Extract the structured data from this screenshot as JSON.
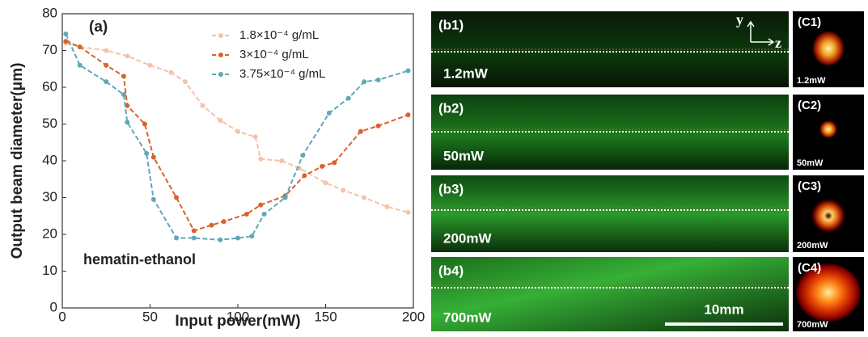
{
  "chart_data": {
    "type": "line",
    "panel_label": "(a)",
    "annotation": "hematin-ethanol",
    "x_label": "Input power(mW)",
    "y_label": "Output beam diameter(μm)",
    "xlim": [
      0,
      200
    ],
    "ylim": [
      0,
      80
    ],
    "xticks": [
      0,
      50,
      100,
      150,
      200
    ],
    "yticks": [
      0,
      10,
      20,
      30,
      40,
      50,
      60,
      70,
      80
    ],
    "legend": "upper right",
    "series": [
      {
        "name": "1.8×10⁻⁴ g/mL",
        "color": "#f4c3a9",
        "x": [
          2,
          10,
          25,
          37,
          50,
          62,
          70,
          80,
          90,
          100,
          110,
          113,
          125,
          135,
          150,
          160,
          172,
          185,
          197
        ],
        "values": [
          72,
          71,
          70,
          68.5,
          66,
          64,
          61.5,
          55,
          51,
          48,
          46.5,
          40.5,
          40,
          38,
          34,
          32,
          30,
          27.5,
          26
        ]
      },
      {
        "name": "3×10⁻⁴ g/mL",
        "color": "#d9622b",
        "x": [
          2,
          10,
          25,
          35,
          37,
          47,
          52,
          65,
          75,
          85,
          92,
          105,
          113,
          127,
          138,
          148,
          155,
          170,
          180,
          197
        ],
        "values": [
          72.5,
          71,
          66,
          63,
          55,
          50,
          41,
          30,
          21,
          22.5,
          23.5,
          25.5,
          28,
          30.5,
          36,
          38.5,
          39.5,
          48,
          49.5,
          52.5
        ]
      },
      {
        "name": "3.75×10⁻⁴ g/mL",
        "color": "#5fa8b8",
        "x": [
          2,
          10,
          25,
          35,
          37,
          48,
          52,
          65,
          75,
          90,
          100,
          108,
          115,
          127,
          137,
          152,
          163,
          172,
          180,
          197
        ],
        "values": [
          74.5,
          66,
          61.5,
          58,
          50.5,
          42,
          29.5,
          19,
          19,
          18.5,
          19,
          19.5,
          25.5,
          30,
          41.5,
          53,
          57,
          61.5,
          62,
          64.5
        ]
      }
    ]
  },
  "image_panels": [
    {
      "label": "(b1)",
      "power": "1.2mW"
    },
    {
      "label": "(b2)",
      "power": "50mW"
    },
    {
      "label": "(b3)",
      "power": "200mW"
    },
    {
      "label": "(b4)",
      "power": "700mW"
    }
  ],
  "axis_symbols": {
    "y": "y",
    "z": "z"
  },
  "scale_bar": "10mm",
  "spot_panels": [
    {
      "label": "(C1)",
      "power": "1.2mW"
    },
    {
      "label": "(C2)",
      "power": "50mW"
    },
    {
      "label": "(C3)",
      "power": "200mW"
    },
    {
      "label": "(C4)",
      "power": "700mW"
    }
  ]
}
